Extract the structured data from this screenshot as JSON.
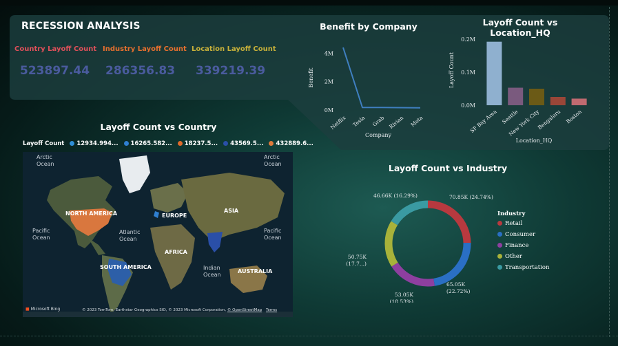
{
  "header": {
    "title": "RECESSION ANALYSIS"
  },
  "kpis": [
    {
      "label": "Country Layoff Count",
      "value": "523897.44",
      "label_color": "#e0505a"
    },
    {
      "label": "Industry Layoff Count",
      "value": "286356.83",
      "label_color": "#e8702e"
    },
    {
      "label": "Location Layoff Count",
      "value": "339219.39",
      "label_color": "#c8b13a"
    }
  ],
  "colors": {
    "value_text": "#4a5b9e",
    "panel": "#1c3e3e",
    "line": "#3f7fc0"
  },
  "map": {
    "title": "Layoff Count vs Country",
    "legend_title": "Layoff Count",
    "legend_items": [
      {
        "label": "12934.994...",
        "color": "#2f8fd8"
      },
      {
        "label": "16265.582...",
        "color": "#2f7fd0"
      },
      {
        "label": "18237.5...",
        "color": "#e06a2a"
      },
      {
        "label": "43569.5...",
        "color": "#2a4fa8"
      },
      {
        "label": "432889.6...",
        "color": "#e07a3a"
      }
    ],
    "labels": {
      "arctic_left": "Arctic Ocean",
      "arctic_right": "Arctic Ocean",
      "north_america": "NORTH AMERICA",
      "europe": "EUROPE",
      "asia": "ASIA",
      "pacific_left": "Pacific Ocean",
      "pacific_right": "Pacific Ocean",
      "atlantic": "Atlantic Ocean",
      "africa": "AFRICA",
      "south_america": "SOUTH AMERICA",
      "indian": "Indian Ocean",
      "australia": "AUSTRALIA"
    },
    "brand": "Microsoft Bing",
    "attribution": "© 2023 TomTom, Earthstar Geographics SIO, © 2023 Microsoft Corporation,",
    "attribution_link": "© OpenStreetMap",
    "terms": "Terms"
  },
  "chart_data": [
    {
      "type": "line",
      "title": "Benefit by Company",
      "xlabel": "Company",
      "ylabel": "Benefit",
      "categories": [
        "Netflix",
        "Tesla",
        "Grab",
        "Rivian",
        "Meta"
      ],
      "values": [
        4400000,
        180000,
        180000,
        170000,
        160000
      ],
      "yticks": [
        {
          "v": 0,
          "label": "0M"
        },
        {
          "v": 2000000,
          "label": "2M"
        },
        {
          "v": 4000000,
          "label": "4M"
        }
      ],
      "ylim": [
        0,
        4500000
      ]
    },
    {
      "type": "bar",
      "title": "Layoff Count vs Location_HQ",
      "xlabel": "Location_HQ",
      "ylabel": "Layoff Count",
      "categories": [
        "SF Bay Area",
        "Seattle",
        "New York City",
        "Bengaluru",
        "Boston"
      ],
      "values": [
        192000,
        53000,
        50000,
        25000,
        20000
      ],
      "colors": [
        "#8fb0cf",
        "#7a5a7e",
        "#6b5a16",
        "#9a4638",
        "#c06a70"
      ],
      "yticks": [
        {
          "v": 0,
          "label": "0.0M"
        },
        {
          "v": 100000,
          "label": "0.1M"
        },
        {
          "v": 200000,
          "label": "0.2M"
        }
      ],
      "ylim": [
        0,
        210000
      ]
    },
    {
      "type": "pie",
      "title": "Layoff Count vs Industry",
      "legend_title": "Industry",
      "legend_position": "right",
      "slices": [
        {
          "name": "Retail",
          "value": 70.85,
          "label": "70.85K (24.74%)",
          "color": "#b8393f"
        },
        {
          "name": "Consumer",
          "value": 65.05,
          "label": "65.05K (22.72%)",
          "color": "#2a6fc4"
        },
        {
          "name": "Finance",
          "value": 53.05,
          "label": "53.05K (18.53%)",
          "color": "#8e3fa0"
        },
        {
          "name": "Other",
          "value": 50.75,
          "label": "50.75K (17.7...)",
          "color": "#a8b23a"
        },
        {
          "name": "Transportation",
          "value": 46.66,
          "label": "46.66K (16.29%)",
          "color": "#3a9aa2"
        }
      ]
    }
  ]
}
